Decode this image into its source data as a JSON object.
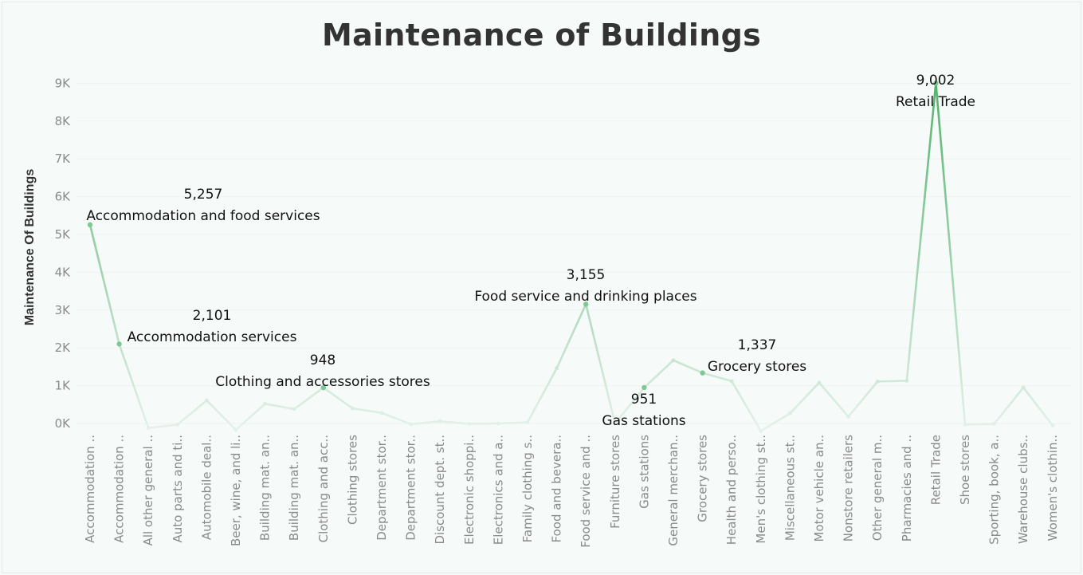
{
  "chart_data": {
    "type": "line",
    "title": "Maintenance of Buildings",
    "xlabel": "",
    "ylabel": "Maintenance Of Buildings",
    "ylim": [
      -200,
      9400
    ],
    "y_ticks": [
      {
        "value": 0,
        "label": "0K"
      },
      {
        "value": 1000,
        "label": "1K"
      },
      {
        "value": 2000,
        "label": "2K"
      },
      {
        "value": 3000,
        "label": "3K"
      },
      {
        "value": 4000,
        "label": "4K"
      },
      {
        "value": 5000,
        "label": "5K"
      },
      {
        "value": 6000,
        "label": "6K"
      },
      {
        "value": 7000,
        "label": "7K"
      },
      {
        "value": 8000,
        "label": "8K"
      },
      {
        "value": 9000,
        "label": "9K"
      }
    ],
    "grid": true,
    "colors": {
      "line_high": "#52b26b",
      "line_low": "#e6f1ea",
      "marker": "#7fc893"
    },
    "categories": [
      "Accommodation ..",
      "Accommodation ..",
      "All other general ..",
      "Auto parts and ti..",
      "Automobile deal..",
      "Beer, wine, and li..",
      "Building mat. an..",
      "Building mat. an..",
      "Clothing and acc..",
      "Clothing stores",
      "Department stor..",
      "Department stor..",
      "Discount dept. st..",
      "Electronic shoppi..",
      "Electronics and a..",
      "Family clothing s..",
      "Food and bevera..",
      "Food service and ..",
      "Furniture stores",
      "Gas stations",
      "General merchan..",
      "Grocery stores",
      "Health and perso..",
      "Men's clothing st..",
      "Miscellaneous st..",
      "Motor vehicle an..",
      "Nonstore retailers",
      "Other general m..",
      "Pharmacies and ..",
      "Retail Trade",
      "Shoe stores",
      "Sporting, book, a..",
      "Warehouse clubs..",
      "Women's clothin.."
    ],
    "values": [
      5257,
      2101,
      -120,
      -30,
      610,
      -170,
      520,
      380,
      948,
      400,
      280,
      -20,
      60,
      -10,
      0,
      30,
      1460,
      3155,
      0,
      951,
      1670,
      1337,
      1120,
      -200,
      270,
      1080,
      180,
      1110,
      1130,
      9002,
      -30,
      -10,
      950,
      -50
    ],
    "annotations": [
      {
        "index": 0,
        "value_label": "5,257",
        "name": "Accommodation and food services"
      },
      {
        "index": 1,
        "value_label": "2,101",
        "name": "Accommodation services"
      },
      {
        "index": 8,
        "value_label": "948",
        "name": "Clothing and accessories stores"
      },
      {
        "index": 17,
        "value_label": "3,155",
        "name": "Food service and drinking places"
      },
      {
        "index": 19,
        "value_label": "951",
        "name": "Gas stations"
      },
      {
        "index": 21,
        "value_label": "1,337",
        "name": "Grocery stores"
      },
      {
        "index": 29,
        "value_label": "9,002",
        "name": "Retail Trade"
      }
    ]
  }
}
